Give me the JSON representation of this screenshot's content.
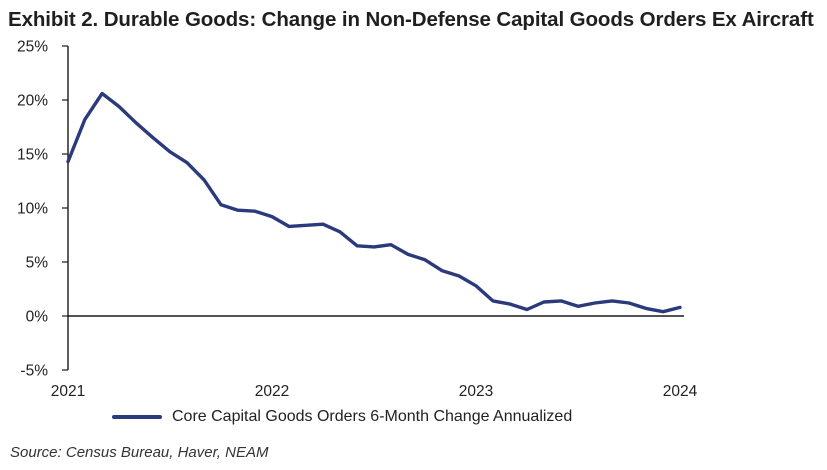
{
  "header": {
    "title": "Exhibit 2. Durable Goods: Change in Non-Defense Capital Goods Orders Ex Aircraft"
  },
  "source": {
    "text": "Source: Census Bureau, Haver, NEAM"
  },
  "colors": {
    "series": "#2b3a7a",
    "axis": "#1a1a1a"
  },
  "chart_data": {
    "type": "line",
    "title": "Exhibit 2. Durable Goods: Change in Non-Defense Capital Goods Orders Ex Aircraft",
    "xlabel": "",
    "ylabel": "",
    "grid": false,
    "xlim": [
      2021.0,
      2024.0
    ],
    "ylim": [
      -5,
      25
    ],
    "y_ticks": [
      25,
      20,
      15,
      10,
      5,
      0,
      -5
    ],
    "y_tick_labels": [
      "25%",
      "20%",
      "15%",
      "10%",
      "5%",
      "0%",
      "-5%"
    ],
    "x_ticks": [
      2021,
      2022,
      2023,
      2024
    ],
    "x_tick_labels": [
      "2021",
      "2022",
      "2023",
      "2024"
    ],
    "legend_position": "bottom",
    "series": [
      {
        "name": "Core Capital Goods Orders 6-Month Change Annualized",
        "x": [
          2021.0,
          2021.083,
          2021.167,
          2021.25,
          2021.333,
          2021.417,
          2021.5,
          2021.583,
          2021.667,
          2021.75,
          2021.833,
          2021.917,
          2022.0,
          2022.083,
          2022.167,
          2022.25,
          2022.333,
          2022.417,
          2022.5,
          2022.583,
          2022.667,
          2022.75,
          2022.833,
          2022.917,
          2023.0,
          2023.083,
          2023.167,
          2023.25,
          2023.333,
          2023.417,
          2023.5,
          2023.583,
          2023.667,
          2023.75,
          2023.833,
          2023.917,
          2024.0
        ],
        "values": [
          14.3,
          18.2,
          20.6,
          19.4,
          17.9,
          16.5,
          15.2,
          14.2,
          12.6,
          10.3,
          9.8,
          9.7,
          9.2,
          8.3,
          8.4,
          8.5,
          7.8,
          6.5,
          6.4,
          6.6,
          5.7,
          5.2,
          4.2,
          3.7,
          2.8,
          1.4,
          1.1,
          0.6,
          1.3,
          1.4,
          0.9,
          1.2,
          1.4,
          1.2,
          0.7,
          0.4,
          0.8
        ]
      }
    ]
  }
}
